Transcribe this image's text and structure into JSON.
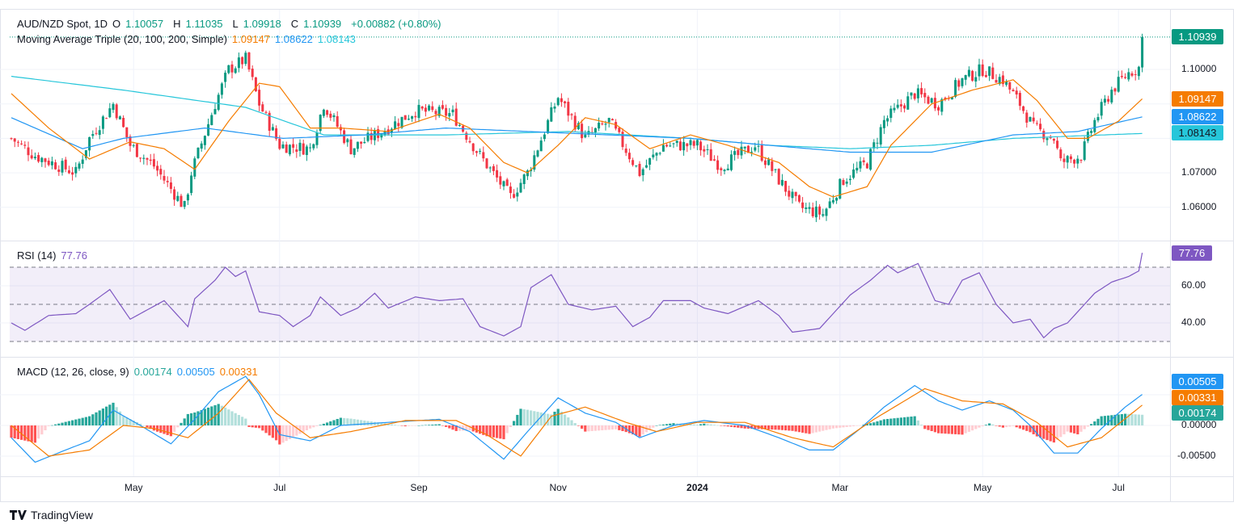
{
  "header": {
    "symbol": "AUD/NZD Spot, 1D",
    "open": "O",
    "open_val": "1.10057",
    "high": "H",
    "high_val": "1.11035",
    "low": "L",
    "low_val": "1.09918",
    "close": "C",
    "close_val": "1.10939",
    "change": "+0.00882 (+0.80%)"
  },
  "ma_legend": {
    "label": "Moving Average Triple (20, 100, 200, Simple)",
    "ma20": "1.09147",
    "ma100": "1.08622",
    "ma200": "1.08143"
  },
  "rsi_legend": {
    "label": "RSI (14)",
    "value": "77.76"
  },
  "macd_legend": {
    "label": "MACD (12, 26, close, 9)",
    "hist": "0.00174",
    "macd": "0.00505",
    "signal": "0.00331"
  },
  "price_axis": [
    "1.10000",
    "1.07000",
    "1.06000"
  ],
  "rsi_axis": [
    "60.00",
    "40.00"
  ],
  "macd_axis": [
    "0.00000",
    "-0.00500"
  ],
  "tags": {
    "price": "1.10939",
    "ma20": "1.09147",
    "ma100": "1.08622",
    "ma200": "1.08143",
    "rsi": "77.76",
    "macd": "0.00505",
    "signal": "0.00331",
    "hist": "0.00174"
  },
  "time_axis": [
    {
      "label": "May",
      "bar": 36
    },
    {
      "label": "Jul",
      "bar": 79
    },
    {
      "label": "Sep",
      "bar": 120
    },
    {
      "label": "Nov",
      "bar": 161
    },
    {
      "label": "2024",
      "bar": 202
    },
    {
      "label": "Mar",
      "bar": 244
    },
    {
      "label": "May",
      "bar": 286
    },
    {
      "label": "Jul",
      "bar": 326
    }
  ],
  "brand": "TradingView",
  "colors": {
    "up": "#089981",
    "down": "#f23645",
    "ma20": "#f57c00",
    "ma100": "#2196f3",
    "ma200": "#26c6da",
    "rsi": "#7e57c2"
  },
  "chart_data": {
    "type": "candlestick",
    "bars": 334,
    "last_candle": {
      "open": 1.10057,
      "high": 1.11035,
      "low": 1.09918,
      "close": 1.10939
    },
    "price_ylim": [
      1.055,
      1.112
    ],
    "close_anchors": [
      [
        0,
        1.08
      ],
      [
        7,
        1.075
      ],
      [
        19,
        1.07
      ],
      [
        23,
        1.08
      ],
      [
        30,
        1.09
      ],
      [
        35,
        1.078
      ],
      [
        42,
        1.072
      ],
      [
        51,
        1.06
      ],
      [
        53,
        1.07
      ],
      [
        60,
        1.09
      ],
      [
        64,
        1.1
      ],
      [
        69,
        1.103
      ],
      [
        73,
        1.09
      ],
      [
        79,
        1.078
      ],
      [
        88,
        1.077
      ],
      [
        92,
        1.09
      ],
      [
        100,
        1.077
      ],
      [
        109,
        1.082
      ],
      [
        119,
        1.088
      ],
      [
        130,
        1.087
      ],
      [
        138,
        1.075
      ],
      [
        147,
        1.063
      ],
      [
        152,
        1.07
      ],
      [
        161,
        1.092
      ],
      [
        169,
        1.08
      ],
      [
        176,
        1.085
      ],
      [
        185,
        1.07
      ],
      [
        192,
        1.078
      ],
      [
        202,
        1.078
      ],
      [
        209,
        1.072
      ],
      [
        219,
        1.078
      ],
      [
        226,
        1.068
      ],
      [
        232,
        1.06
      ],
      [
        239,
        1.058
      ],
      [
        245,
        1.068
      ],
      [
        252,
        1.073
      ],
      [
        257,
        1.085
      ],
      [
        266,
        1.093
      ],
      [
        273,
        1.09
      ],
      [
        280,
        1.097
      ],
      [
        286,
        1.1
      ],
      [
        292,
        1.097
      ],
      [
        297,
        1.09
      ],
      [
        301,
        1.083
      ],
      [
        307,
        1.08
      ],
      [
        309,
        1.073
      ],
      [
        315,
        1.075
      ],
      [
        319,
        1.085
      ],
      [
        324,
        1.094
      ],
      [
        329,
        1.099
      ],
      [
        332,
        1.1006
      ],
      [
        333,
        1.10939
      ]
    ],
    "ma20": [
      [
        0,
        1.093
      ],
      [
        11,
        1.083
      ],
      [
        23,
        1.074
      ],
      [
        35,
        1.079
      ],
      [
        45,
        1.077
      ],
      [
        54,
        1.071
      ],
      [
        64,
        1.085
      ],
      [
        73,
        1.096
      ],
      [
        79,
        1.095
      ],
      [
        88,
        1.083
      ],
      [
        97,
        1.083
      ],
      [
        111,
        1.082
      ],
      [
        126,
        1.087
      ],
      [
        135,
        1.083
      ],
      [
        145,
        1.073
      ],
      [
        152,
        1.07
      ],
      [
        161,
        1.078
      ],
      [
        169,
        1.086
      ],
      [
        178,
        1.084
      ],
      [
        188,
        1.077
      ],
      [
        200,
        1.081
      ],
      [
        211,
        1.078
      ],
      [
        226,
        1.073
      ],
      [
        235,
        1.066
      ],
      [
        242,
        1.063
      ],
      [
        252,
        1.066
      ],
      [
        259,
        1.078
      ],
      [
        271,
        1.09
      ],
      [
        283,
        1.094
      ],
      [
        295,
        1.097
      ],
      [
        302,
        1.091
      ],
      [
        311,
        1.08
      ],
      [
        317,
        1.08
      ],
      [
        326,
        1.085
      ],
      [
        333,
        1.09147
      ]
    ],
    "ma100": [
      [
        0,
        1.086
      ],
      [
        21,
        1.077
      ],
      [
        33,
        1.08
      ],
      [
        57,
        1.083
      ],
      [
        80,
        1.08
      ],
      [
        104,
        1.081
      ],
      [
        128,
        1.083
      ],
      [
        152,
        1.082
      ],
      [
        176,
        1.081
      ],
      [
        200,
        1.08
      ],
      [
        223,
        1.078
      ],
      [
        247,
        1.076
      ],
      [
        271,
        1.076
      ],
      [
        295,
        1.081
      ],
      [
        314,
        1.082
      ],
      [
        333,
        1.08622
      ]
    ],
    "ma200": [
      [
        0,
        1.098
      ],
      [
        33,
        1.094
      ],
      [
        69,
        1.089
      ],
      [
        92,
        1.081
      ],
      [
        128,
        1.081
      ],
      [
        164,
        1.082
      ],
      [
        200,
        1.08
      ],
      [
        223,
        1.078
      ],
      [
        247,
        1.077
      ],
      [
        271,
        1.078
      ],
      [
        295,
        1.08
      ],
      [
        333,
        1.08143
      ]
    ],
    "rsi_ylim": [
      25,
      85
    ],
    "rsi": [
      [
        0,
        40
      ],
      [
        4,
        36
      ],
      [
        11,
        44
      ],
      [
        19,
        45
      ],
      [
        23,
        50
      ],
      [
        29,
        58
      ],
      [
        35,
        42
      ],
      [
        40,
        47
      ],
      [
        45,
        52
      ],
      [
        52,
        38
      ],
      [
        54,
        53
      ],
      [
        60,
        63
      ],
      [
        63,
        70
      ],
      [
        66,
        65
      ],
      [
        69,
        68
      ],
      [
        73,
        46
      ],
      [
        79,
        44
      ],
      [
        83,
        38
      ],
      [
        88,
        44
      ],
      [
        91,
        54
      ],
      [
        97,
        44
      ],
      [
        102,
        48
      ],
      [
        107,
        56
      ],
      [
        111,
        48
      ],
      [
        119,
        54
      ],
      [
        126,
        52
      ],
      [
        133,
        53
      ],
      [
        138,
        38
      ],
      [
        145,
        33
      ],
      [
        150,
        38
      ],
      [
        153,
        59
      ],
      [
        159,
        66
      ],
      [
        164,
        50
      ],
      [
        171,
        47
      ],
      [
        178,
        49
      ],
      [
        183,
        38
      ],
      [
        188,
        43
      ],
      [
        192,
        52
      ],
      [
        200,
        52
      ],
      [
        204,
        48
      ],
      [
        211,
        45
      ],
      [
        220,
        52
      ],
      [
        226,
        44
      ],
      [
        230,
        35
      ],
      [
        238,
        37
      ],
      [
        242,
        45
      ],
      [
        247,
        55
      ],
      [
        253,
        63
      ],
      [
        258,
        71
      ],
      [
        261,
        67
      ],
      [
        267,
        72
      ],
      [
        272,
        52
      ],
      [
        276,
        50
      ],
      [
        280,
        63
      ],
      [
        285,
        67
      ],
      [
        290,
        50
      ],
      [
        295,
        40
      ],
      [
        300,
        42
      ],
      [
        304,
        32
      ],
      [
        307,
        37
      ],
      [
        311,
        40
      ],
      [
        316,
        50
      ],
      [
        319,
        56
      ],
      [
        324,
        62
      ],
      [
        329,
        65
      ],
      [
        332,
        68
      ],
      [
        333,
        77.76
      ]
    ],
    "rsi_levels": [
      70,
      50,
      30
    ],
    "macd_ylim": [
      -0.0075,
      0.01
    ],
    "macd": [
      [
        0,
        -0.002
      ],
      [
        7,
        -0.006
      ],
      [
        16,
        -0.004
      ],
      [
        23,
        -0.0025
      ],
      [
        30,
        0.0025
      ],
      [
        38,
        0.0
      ],
      [
        47,
        -0.003
      ],
      [
        54,
        0.001
      ],
      [
        61,
        0.0055
      ],
      [
        69,
        0.008
      ],
      [
        73,
        0.005
      ],
      [
        79,
        -0.0015
      ],
      [
        88,
        -0.0025
      ],
      [
        97,
        0.0
      ],
      [
        111,
        0.0005
      ],
      [
        126,
        0.001
      ],
      [
        135,
        -0.001
      ],
      [
        145,
        -0.0055
      ],
      [
        152,
        -0.001
      ],
      [
        161,
        0.0045
      ],
      [
        169,
        0.002
      ],
      [
        178,
        0.0005
      ],
      [
        185,
        -0.002
      ],
      [
        195,
        0.0
      ],
      [
        204,
        0.0008
      ],
      [
        216,
        0.0
      ],
      [
        226,
        -0.002
      ],
      [
        235,
        -0.004
      ],
      [
        242,
        -0.004
      ],
      [
        250,
        -0.0005
      ],
      [
        257,
        0.003
      ],
      [
        266,
        0.0065
      ],
      [
        273,
        0.004
      ],
      [
        280,
        0.0025
      ],
      [
        288,
        0.004
      ],
      [
        295,
        0.0025
      ],
      [
        300,
        0.0
      ],
      [
        307,
        -0.0045
      ],
      [
        314,
        -0.0045
      ],
      [
        321,
        -0.0005
      ],
      [
        328,
        0.003
      ],
      [
        333,
        0.00505
      ]
    ],
    "signal": [
      [
        0,
        0.0
      ],
      [
        11,
        -0.005
      ],
      [
        23,
        -0.004
      ],
      [
        33,
        0.0
      ],
      [
        42,
        -0.0005
      ],
      [
        52,
        -0.002
      ],
      [
        61,
        0.002
      ],
      [
        70,
        0.0075
      ],
      [
        78,
        0.002
      ],
      [
        88,
        -0.002
      ],
      [
        100,
        -0.001
      ],
      [
        116,
        0.0008
      ],
      [
        131,
        0.0008
      ],
      [
        140,
        -0.0015
      ],
      [
        150,
        -0.005
      ],
      [
        159,
        0.0015
      ],
      [
        169,
        0.003
      ],
      [
        181,
        0.0005
      ],
      [
        190,
        -0.001
      ],
      [
        202,
        0.0005
      ],
      [
        216,
        0.0005
      ],
      [
        230,
        -0.002
      ],
      [
        242,
        -0.0035
      ],
      [
        254,
        0.001
      ],
      [
        269,
        0.006
      ],
      [
        280,
        0.004
      ],
      [
        292,
        0.0035
      ],
      [
        302,
        0.0005
      ],
      [
        311,
        -0.0035
      ],
      [
        321,
        -0.002
      ],
      [
        333,
        0.00331
      ]
    ]
  }
}
